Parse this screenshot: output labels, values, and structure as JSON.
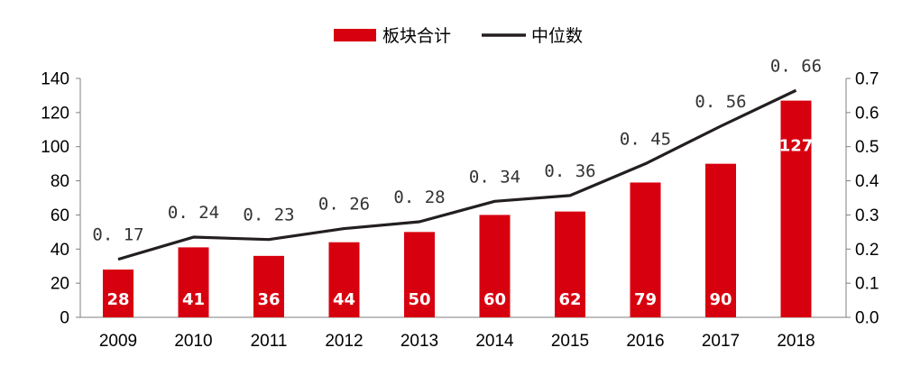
{
  "chart_data": {
    "type": "bar",
    "categories": [
      "2009",
      "2010",
      "2011",
      "2012",
      "2013",
      "2014",
      "2015",
      "2016",
      "2017",
      "2018"
    ],
    "series": [
      {
        "name": "板块合计",
        "type": "bar",
        "axis": "left",
        "color": "#d7000f",
        "values": [
          28,
          41,
          36,
          44,
          50,
          60,
          62,
          79,
          90,
          127
        ],
        "labels": [
          "28",
          "41",
          "36",
          "44",
          "50",
          "60",
          "62",
          "79",
          "90",
          "127"
        ]
      },
      {
        "name": "中位数",
        "type": "line",
        "axis": "right",
        "color": "#231f20",
        "values": [
          0.17,
          0.235,
          0.228,
          0.26,
          0.28,
          0.34,
          0.357,
          0.45,
          0.56,
          0.665
        ],
        "labels": [
          "0. 17",
          "0. 24",
          "0. 23",
          "0. 26",
          "0. 28",
          "0. 34",
          "0. 36",
          "0. 45",
          "0. 56",
          "0. 66"
        ]
      }
    ],
    "left_axis": {
      "ylim": [
        0,
        140
      ],
      "ticks": [
        "0",
        "20",
        "40",
        "60",
        "80",
        "100",
        "120",
        "140"
      ]
    },
    "right_axis": {
      "ylim": [
        0,
        0.7
      ],
      "ticks": [
        "0.0",
        "0.1",
        "0.2",
        "0.3",
        "0.4",
        "0.5",
        "0.6",
        "0.7"
      ]
    },
    "legend_position": "top-center",
    "grid": false
  }
}
